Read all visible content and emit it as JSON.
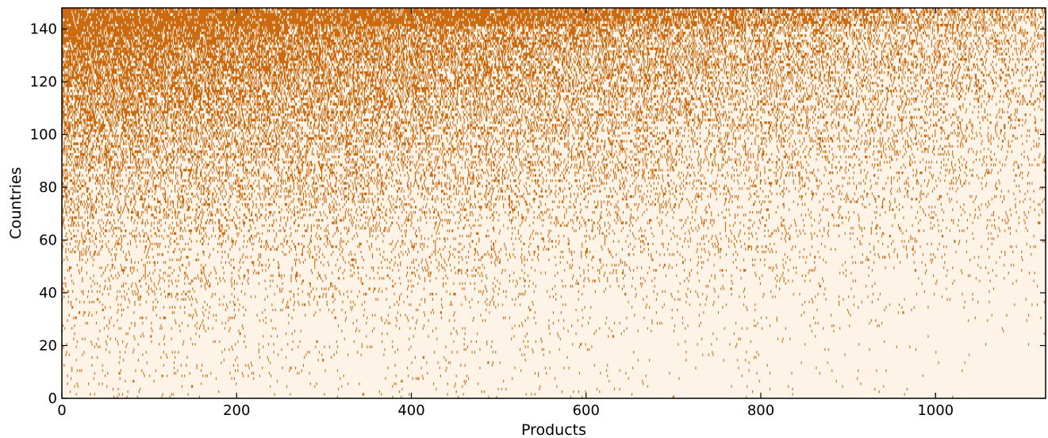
{
  "chart_data": {
    "type": "heatmap",
    "title": "",
    "xlabel": "Products",
    "ylabel": "Countries",
    "xlim": [
      0,
      1126
    ],
    "ylim": [
      0,
      148
    ],
    "x_ticks": [
      0,
      200,
      400,
      600,
      800,
      1000
    ],
    "y_ticks": [
      0,
      20,
      40,
      60,
      80,
      100,
      120,
      140
    ],
    "x_tick_labels": [
      "0",
      "200",
      "400",
      "600",
      "800",
      "1000"
    ],
    "y_tick_labels": [
      "0",
      "20",
      "40",
      "60",
      "80",
      "100",
      "120",
      "140"
    ],
    "grid": false,
    "legend": "none",
    "values": "binary matrix (countries x products); marked cells = 1, density decreasing with product index and increasing with country index",
    "colors": {
      "background": "#fdf3e7",
      "marked": "#cc6a10",
      "frame": "#000000"
    }
  }
}
